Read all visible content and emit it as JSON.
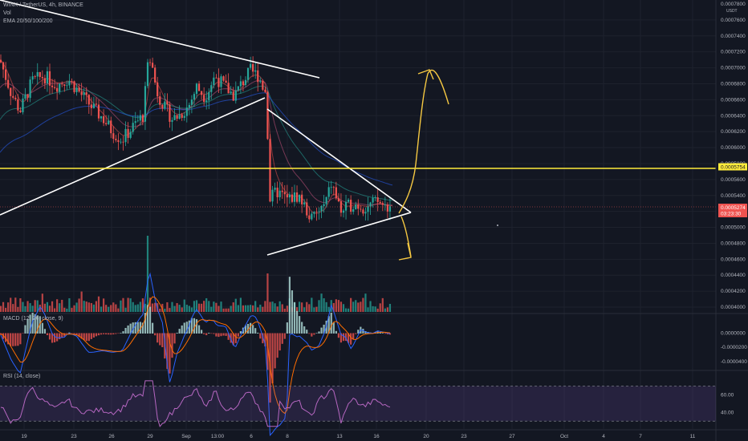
{
  "header": {
    "symbol": "WINK / TetherUS, 4h, BINANCE",
    "vol": "Vol",
    "ema": "EMA 20/50/100/200",
    "currency": "USDT",
    "macd": "MACD (12, 26, close, 9)",
    "rsi": "RSI (14, close)"
  },
  "colors": {
    "background": "#131722",
    "up": "#26a69a",
    "down": "#ef5350",
    "trendline": "#ffffff",
    "drawing": "#f5c842",
    "hline": "#ffeb3b",
    "rsi_band": "#7e57c2",
    "rsi_line": "#b667c1"
  },
  "chart_data": {
    "type": "candlestick",
    "x_ticks": [
      "19",
      "23",
      "26",
      "29",
      "Sep",
      "13:00",
      "6",
      "8",
      "13",
      "16",
      "20",
      "23",
      "27",
      "Oct",
      "4",
      "7",
      "11"
    ],
    "price_axis": {
      "ticks": [
        "0.0007600",
        "0.0007400",
        "0.0007200",
        "0.0007000",
        "0.0006800",
        "0.0006600",
        "0.0006400",
        "0.0006200",
        "0.0006000",
        "0.0005800",
        "0.0005600",
        "0.0005400",
        "0.0005200",
        "0.0005000",
        "0.0004800",
        "0.0004600",
        "0.0004400",
        "0.0004200",
        "0.0004000"
      ],
      "range": [
        0.000393,
        0.000785
      ],
      "top_label": "0.0007800"
    },
    "labels": {
      "horizontal_level": "0.0005754",
      "last_price": "0.0005274",
      "countdown": "03:23:30"
    },
    "macd_axis": {
      "ticks": [
        "0.0000000",
        "-0.0000200",
        "-0.0000400"
      ],
      "range": [
        -4.8e-05,
        2.2e-05
      ]
    },
    "rsi_axis": {
      "ticks": [
        "60.00",
        "40.00"
      ],
      "range": [
        22,
        86
      ],
      "bands": [
        70,
        30
      ]
    }
  }
}
